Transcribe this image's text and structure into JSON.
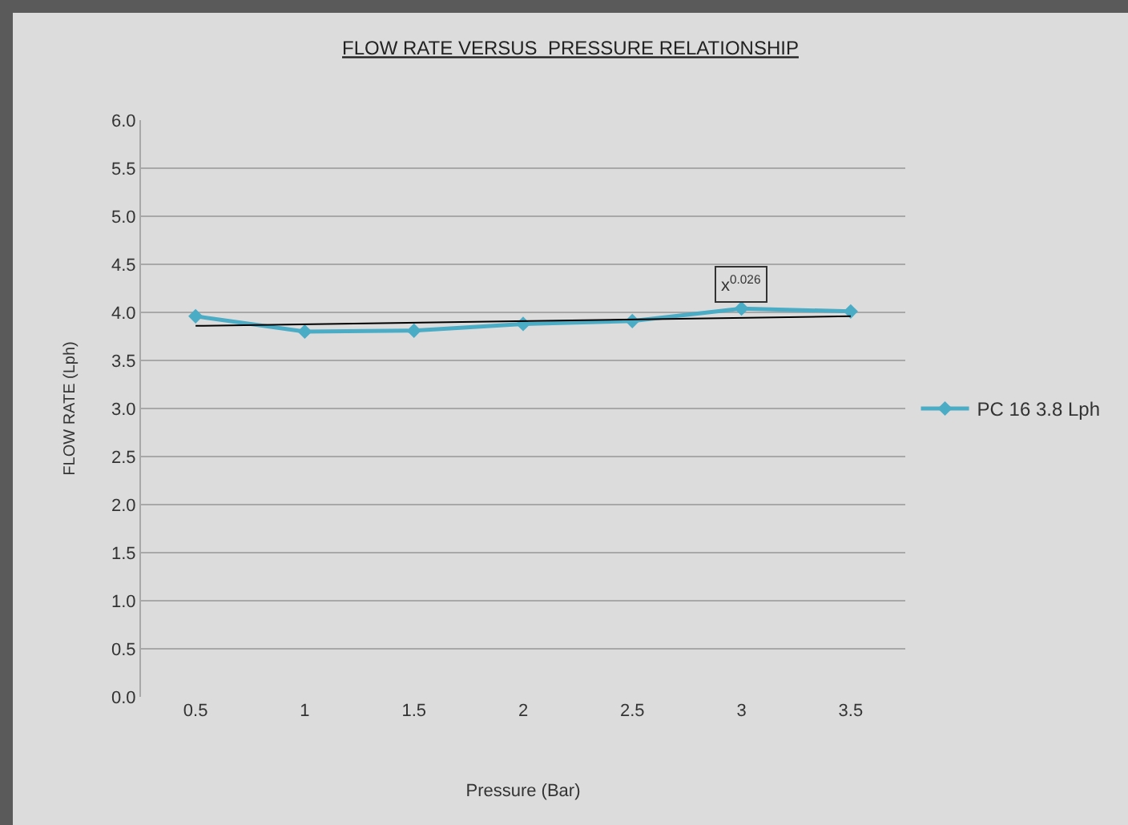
{
  "chart_data": {
    "type": "line",
    "title": "FLOW RATE VERSUS  PRESSURE RELATIONSHIP",
    "xlabel": "Pressure (Bar)",
    "ylabel": "FLOW RATE (Lph)",
    "categories": [
      "0.5",
      "1",
      "1.5",
      "2",
      "2.5",
      "3",
      "3.5"
    ],
    "series": [
      {
        "name": "PC 16 3.8 Lph",
        "color": "#4bacc6",
        "values": [
          3.96,
          3.8,
          3.81,
          3.88,
          3.91,
          4.04,
          4.01
        ],
        "marker": "diamond"
      },
      {
        "type": "line",
        "color": "#000000",
        "x": [
          "0.5",
          "3.5"
        ],
        "values": [
          3.86,
          3.96
        ],
        "marker": "none"
      }
    ],
    "annotations": [
      {
        "text": "x$^{0.026}$",
        "x": "3",
        "y": 4.3
      }
    ],
    "ylim": [
      0,
      6
    ],
    "yticks": [
      {
        "value": 0,
        "label": "0.0"
      },
      {
        "value": 0.5,
        "label": "0.5"
      },
      {
        "value": 1,
        "label": "1.0"
      },
      {
        "value": 1.5,
        "label": "1.5"
      },
      {
        "value": 2,
        "label": "2.0"
      },
      {
        "value": 2.5,
        "label": "2.5"
      },
      {
        "value": 3,
        "label": "3.0"
      },
      {
        "value": 3.5,
        "label": "3.5"
      },
      {
        "value": 4,
        "label": "4.0"
      },
      {
        "value": 4.5,
        "label": "4.5"
      },
      {
        "value": 5,
        "label": "5.0"
      },
      {
        "value": 5.5,
        "label": "5.5"
      },
      {
        "value": 6,
        "label": "6.0"
      }
    ],
    "grid": "y",
    "legend": "right"
  }
}
